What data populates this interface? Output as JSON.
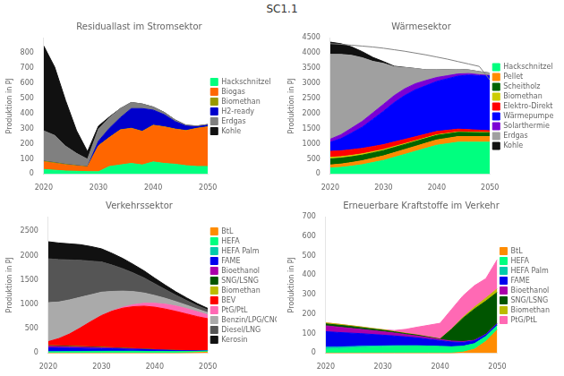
{
  "title": "SC1.1",
  "chart_data": [
    {
      "type": "area",
      "stacked": true,
      "title": "Residuallast im Stromsektor",
      "ylabel": "Produktion in PJ",
      "x": [
        2020,
        2022,
        2024,
        2026,
        2028,
        2030,
        2032,
        2034,
        2036,
        2038,
        2040,
        2042,
        2044,
        2046,
        2048,
        2050
      ],
      "xlim": [
        2020,
        2050
      ],
      "xticks": [
        2020,
        2030,
        2040,
        2050
      ],
      "ylim": [
        0,
        900
      ],
      "yticks": [
        0,
        100,
        200,
        300,
        400,
        500,
        600,
        700,
        800
      ],
      "grid": false,
      "legend": "right",
      "series": [
        {
          "name": "Hackschnitzel",
          "color": "#00FF7F",
          "values": [
            30,
            25,
            20,
            18,
            16,
            15,
            50,
            60,
            70,
            60,
            80,
            70,
            65,
            55,
            50,
            50
          ]
        },
        {
          "name": "Biogas",
          "color": "#FF6600",
          "values": [
            50,
            45,
            40,
            35,
            30,
            170,
            190,
            230,
            230,
            220,
            240,
            240,
            230,
            230,
            250,
            260
          ]
        },
        {
          "name": "Biomethan",
          "color": "#999900",
          "values": [
            5,
            5,
            4,
            3,
            2,
            2,
            2,
            2,
            2,
            2,
            2,
            2,
            2,
            2,
            2,
            2
          ]
        },
        {
          "name": "H2-ready",
          "color": "#0000CC",
          "values": [
            0,
            0,
            0,
            0,
            0,
            30,
            60,
            80,
            130,
            150,
            100,
            80,
            50,
            30,
            10,
            10
          ]
        },
        {
          "name": "Erdgas",
          "color": "#808080",
          "values": [
            200,
            180,
            120,
            80,
            50,
            80,
            70,
            60,
            40,
            30,
            20,
            15,
            10,
            5,
            5,
            5
          ]
        },
        {
          "name": "Kohle",
          "color": "#111111",
          "values": [
            560,
            450,
            300,
            150,
            50,
            20,
            5,
            0,
            0,
            0,
            0,
            0,
            0,
            0,
            0,
            0
          ]
        }
      ]
    },
    {
      "type": "area",
      "stacked": true,
      "title": "Wärmesektor",
      "ylabel": "Produktion in PJ",
      "x": [
        2020,
        2022,
        2024,
        2026,
        2028,
        2030,
        2032,
        2034,
        2036,
        2038,
        2040,
        2042,
        2044,
        2046,
        2048,
        2050
      ],
      "xlim": [
        2020,
        2050
      ],
      "xticks": [
        2020,
        2030,
        2040,
        2050
      ],
      "ylim": [
        0,
        4500
      ],
      "yticks": [
        0,
        500,
        1000,
        1500,
        2000,
        2500,
        3000,
        3500,
        4000,
        4500
      ],
      "grid": false,
      "legend": "right",
      "series": [
        {
          "name": "Hackschnitzel",
          "color": "#00FF7F",
          "values": [
            200,
            220,
            260,
            310,
            380,
            450,
            550,
            650,
            750,
            850,
            950,
            1000,
            1050,
            1050,
            1050,
            1050
          ]
        },
        {
          "name": "Pellet",
          "color": "#FF8C00",
          "values": [
            100,
            110,
            120,
            130,
            140,
            150,
            155,
            160,
            165,
            170,
            175,
            180,
            185,
            185,
            185,
            185
          ]
        },
        {
          "name": "Scheitholz",
          "color": "#006400",
          "values": [
            200,
            195,
            190,
            185,
            180,
            175,
            170,
            165,
            160,
            155,
            150,
            145,
            140,
            135,
            130,
            125
          ]
        },
        {
          "name": "Biomethan",
          "color": "#CCCC00",
          "values": [
            50,
            48,
            45,
            42,
            38,
            35,
            32,
            28,
            25,
            22,
            20,
            18,
            16,
            14,
            12,
            10
          ]
        },
        {
          "name": "Elektro-Direkt",
          "color": "#FF0000",
          "values": [
            200,
            195,
            190,
            180,
            170,
            160,
            150,
            140,
            130,
            120,
            110,
            100,
            90,
            80,
            70,
            60
          ]
        },
        {
          "name": "Wärmepumpe",
          "color": "#0000FF",
          "values": [
            300,
            400,
            550,
            700,
            900,
            1100,
            1300,
            1450,
            1550,
            1600,
            1650,
            1700,
            1750,
            1800,
            1800,
            1800
          ]
        },
        {
          "name": "Solarthermie",
          "color": "#7B00D4",
          "values": [
            100,
            130,
            160,
            190,
            210,
            230,
            230,
            220,
            200,
            170,
            130,
            100,
            70,
            50,
            30,
            20
          ]
        },
        {
          "name": "Erdgas",
          "color": "#A0A0A0",
          "values": [
            2800,
            2650,
            2400,
            2100,
            1700,
            1350,
            950,
            700,
            500,
            350,
            250,
            200,
            150,
            120,
            100,
            80
          ]
        },
        {
          "name": "Kohle",
          "color": "#111111",
          "values": [
            400,
            350,
            280,
            200,
            130,
            60,
            20,
            5,
            0,
            0,
            0,
            0,
            0,
            0,
            0,
            0
          ]
        },
        {
          "type": "line",
          "color": "#808080",
          "values": [
            4300,
            4280,
            4250,
            4220,
            4190,
            4150,
            4100,
            4050,
            3990,
            3930,
            3860,
            3790,
            3710,
            3630,
            3550,
            3100
          ]
        }
      ]
    },
    {
      "type": "area",
      "stacked": true,
      "title": "Verkehrssektor",
      "ylabel": "Produktion in PJ",
      "x": [
        2020,
        2022,
        2024,
        2026,
        2028,
        2030,
        2032,
        2034,
        2036,
        2038,
        2040,
        2042,
        2044,
        2046,
        2048,
        2050
      ],
      "xlim": [
        2020,
        2050
      ],
      "xticks": [
        2020,
        2030,
        2040,
        2050
      ],
      "ylim": [
        0,
        2800
      ],
      "yticks": [
        0,
        500,
        1000,
        1500,
        2000,
        2500
      ],
      "grid": false,
      "legend": "right",
      "series": [
        {
          "name": "BtL",
          "color": "#FF8C00",
          "values": [
            0,
            0,
            0,
            0,
            0,
            0,
            0,
            0,
            0,
            0,
            0,
            0,
            0,
            5,
            10,
            20
          ]
        },
        {
          "name": "HEFA",
          "color": "#00FF7F",
          "values": [
            20,
            22,
            25,
            28,
            30,
            32,
            34,
            35,
            36,
            35,
            34,
            32,
            30,
            28,
            25,
            22
          ]
        },
        {
          "name": "HEFA Palm",
          "color": "#00CCAA",
          "values": [
            10,
            9,
            8,
            7,
            6,
            5,
            4,
            3,
            2,
            1,
            0,
            0,
            0,
            0,
            0,
            0
          ]
        },
        {
          "name": "FAME",
          "color": "#0000EE",
          "values": [
            80,
            75,
            70,
            65,
            60,
            55,
            50,
            45,
            40,
            35,
            30,
            25,
            20,
            15,
            10,
            8
          ]
        },
        {
          "name": "Bioethanol",
          "color": "#AA00AA",
          "values": [
            30,
            28,
            25,
            22,
            20,
            18,
            15,
            12,
            10,
            8,
            6,
            5,
            4,
            3,
            2,
            2
          ]
        },
        {
          "name": "SNG/LSNG",
          "color": "#005500",
          "values": [
            10,
            10,
            10,
            9,
            8,
            7,
            6,
            5,
            4,
            3,
            2,
            1,
            1,
            1,
            1,
            1
          ]
        },
        {
          "name": "Biomethan",
          "color": "#BBBB00",
          "values": [
            5,
            5,
            4,
            4,
            3,
            3,
            2,
            2,
            1,
            1,
            1,
            1,
            1,
            1,
            1,
            1
          ]
        },
        {
          "name": "BEV",
          "color": "#FF0000",
          "values": [
            80,
            150,
            250,
            380,
            520,
            650,
            750,
            820,
            860,
            880,
            870,
            840,
            800,
            750,
            700,
            650
          ]
        },
        {
          "name": "PtG/PtL",
          "color": "#FF69B4",
          "values": [
            0,
            0,
            0,
            0,
            0,
            0,
            5,
            20,
            40,
            60,
            80,
            100,
            110,
            110,
            100,
            80
          ]
        },
        {
          "name": "Benzin/LPG/CNG",
          "color": "#AAAAAA",
          "values": [
            800,
            750,
            700,
            630,
            550,
            480,
            400,
            330,
            270,
            210,
            160,
            120,
            90,
            70,
            55,
            45
          ]
        },
        {
          "name": "Diesel/LNG",
          "color": "#555555",
          "values": [
            900,
            870,
            820,
            760,
            690,
            620,
            540,
            460,
            380,
            310,
            240,
            180,
            130,
            95,
            70,
            55
          ]
        },
        {
          "name": "Kerosin",
          "color": "#111111",
          "values": [
            350,
            340,
            330,
            320,
            300,
            270,
            240,
            210,
            175,
            145,
            115,
            90,
            70,
            55,
            42,
            32
          ]
        }
      ]
    },
    {
      "type": "area",
      "stacked": true,
      "title": "Erneuerbare Kraftstoffe im Verkehr",
      "ylabel": "Produktion in PJ",
      "x": [
        2020,
        2022,
        2024,
        2026,
        2028,
        2030,
        2032,
        2034,
        2036,
        2038,
        2040,
        2042,
        2044,
        2046,
        2048,
        2050
      ],
      "xlim": [
        2020,
        2050
      ],
      "xticks": [
        2020,
        2030,
        2040,
        2050
      ],
      "ylim": [
        0,
        700
      ],
      "yticks": [
        0,
        100,
        200,
        300,
        400,
        500,
        600,
        700
      ],
      "grid": false,
      "legend": "right",
      "series": [
        {
          "name": "BtL",
          "color": "#FF8C00",
          "values": [
            0,
            0,
            0,
            0,
            0,
            0,
            0,
            0,
            0,
            0,
            0,
            0,
            5,
            20,
            60,
            120
          ]
        },
        {
          "name": "HEFA",
          "color": "#00FF7F",
          "values": [
            20,
            22,
            25,
            28,
            30,
            32,
            34,
            35,
            36,
            35,
            34,
            32,
            30,
            28,
            25,
            22
          ]
        },
        {
          "name": "HEFA Palm",
          "color": "#00CCAA",
          "values": [
            10,
            9,
            8,
            7,
            6,
            5,
            4,
            3,
            2,
            1,
            0,
            0,
            0,
            0,
            0,
            0
          ]
        },
        {
          "name": "FAME",
          "color": "#0000EE",
          "values": [
            80,
            75,
            70,
            65,
            60,
            55,
            50,
            45,
            40,
            35,
            30,
            25,
            20,
            15,
            10,
            8
          ]
        },
        {
          "name": "Bioethanol",
          "color": "#AA00AA",
          "values": [
            30,
            28,
            25,
            22,
            20,
            18,
            15,
            12,
            10,
            8,
            6,
            5,
            4,
            3,
            2,
            2
          ]
        },
        {
          "name": "SNG/LSNG",
          "color": "#005500",
          "values": [
            10,
            10,
            10,
            9,
            8,
            7,
            6,
            5,
            4,
            3,
            2,
            60,
            120,
            160,
            170,
            160
          ]
        },
        {
          "name": "Biomethan",
          "color": "#BBBB00",
          "values": [
            5,
            5,
            4,
            4,
            3,
            3,
            2,
            2,
            1,
            1,
            1,
            2,
            5,
            10,
            15,
            18
          ]
        },
        {
          "name": "PtG/PtL",
          "color": "#FF69B4",
          "values": [
            0,
            0,
            0,
            0,
            0,
            0,
            5,
            20,
            40,
            60,
            80,
            100,
            110,
            110,
            100,
            150
          ]
        }
      ]
    }
  ]
}
